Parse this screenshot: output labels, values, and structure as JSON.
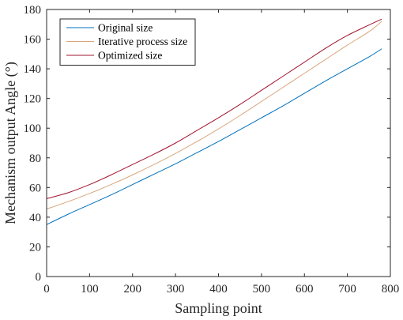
{
  "chart_data": {
    "type": "line",
    "xlabel": "Sampling point",
    "ylabel": "Mechanism output Angle (°)",
    "xlim": [
      0,
      800
    ],
    "ylim": [
      0,
      180
    ],
    "xticks": [
      "0",
      "100",
      "200",
      "300",
      "400",
      "500",
      "600",
      "700",
      "800"
    ],
    "yticks": [
      "0",
      "20",
      "40",
      "60",
      "80",
      "100",
      "120",
      "140",
      "160",
      "180"
    ],
    "grid": false,
    "legend_position": "top-left",
    "x": [
      0,
      50,
      100,
      150,
      200,
      250,
      300,
      350,
      400,
      450,
      500,
      550,
      600,
      650,
      700,
      750,
      780
    ],
    "series": [
      {
        "name": "Original size",
        "color": "#0072BD",
        "values": [
          35,
          42,
          48.5,
          55,
          62,
          69,
          76,
          83.5,
          91,
          99,
          107,
          115,
          123.5,
          132,
          140,
          148,
          153.5
        ]
      },
      {
        "name": "Iterative process size",
        "color": "#D9A77C",
        "values": [
          45.5,
          50.5,
          56,
          62,
          68.5,
          75.5,
          83,
          91,
          99.5,
          108.5,
          118,
          127.5,
          137,
          146.5,
          156,
          165,
          172
        ]
      },
      {
        "name": "Optimized size",
        "color": "#A2142F",
        "values": [
          52.5,
          56.5,
          62,
          68.5,
          75.5,
          82.5,
          90,
          98.5,
          107,
          116,
          125.5,
          135,
          144.5,
          154,
          162.5,
          169.5,
          173.5
        ]
      }
    ]
  }
}
